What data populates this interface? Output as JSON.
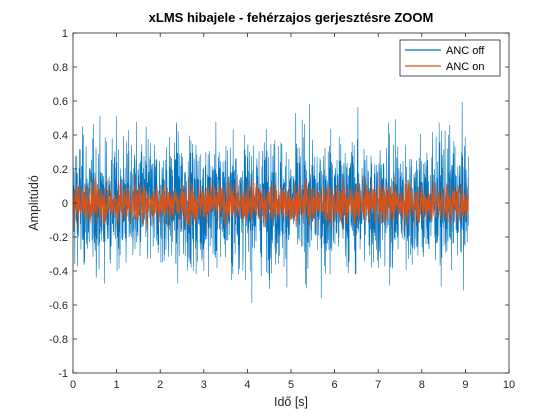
{
  "chart_data": {
    "type": "line",
    "title": "xLMS hibajele - fehérzajos gerjesztésre ZOOM",
    "xlabel": "Idő [s]",
    "ylabel": "Amplitúdó",
    "xlim": [
      0,
      10
    ],
    "ylim": [
      -1,
      1
    ],
    "xticks": [
      0,
      1,
      2,
      3,
      4,
      5,
      6,
      7,
      8,
      9,
      10
    ],
    "yticks": [
      -1,
      -0.8,
      -0.6,
      -0.4,
      -0.2,
      0,
      0.2,
      0.4,
      0.6,
      0.8,
      1
    ],
    "grid": false,
    "legend_position": "top-right",
    "series": [
      {
        "name": "ANC off",
        "color": "#0072BD",
        "x_range": [
          0,
          9.07
        ],
        "description": "white-noise error signal without control",
        "approx_envelope_abs": 0.55,
        "approx_peak_abs": 1.0
      },
      {
        "name": "ANC on",
        "color": "#D95319",
        "x_range": [
          0,
          9.07
        ],
        "description": "residual error with xLMS control",
        "approx_envelope_abs": 0.18,
        "approx_peak_abs": 0.3
      }
    ]
  }
}
